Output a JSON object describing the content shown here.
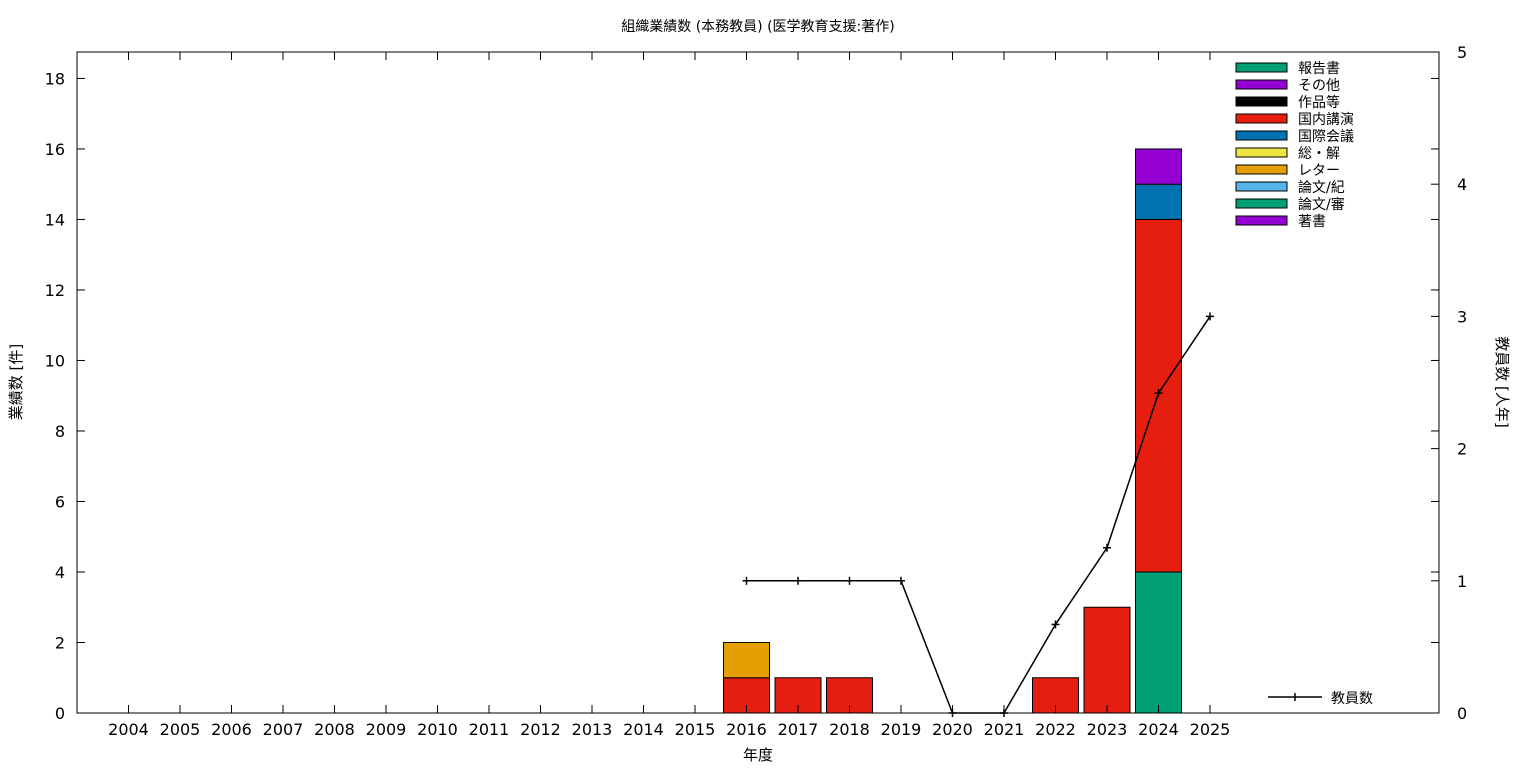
{
  "chart_data": {
    "type": "bar",
    "stacked": true,
    "title": "組織業績数 (本務教員) (医学教育支援:著作)",
    "xlabel": "年度",
    "ylabel": "業績数 [件]",
    "y2label": "教員数 [人年]",
    "categories": [
      "2004",
      "2005",
      "2006",
      "2007",
      "2008",
      "2009",
      "2010",
      "2011",
      "2012",
      "2013",
      "2014",
      "2015",
      "2016",
      "2017",
      "2018",
      "2019",
      "2020",
      "2021",
      "2022",
      "2023",
      "2024",
      "2025"
    ],
    "ylim": [
      0,
      18.75
    ],
    "yticks": [
      0,
      2,
      4,
      6,
      8,
      10,
      12,
      14,
      16,
      18
    ],
    "y2lim": [
      0,
      5
    ],
    "y2ticks": [
      0,
      1,
      2,
      3,
      4,
      5
    ],
    "grid": false,
    "legend_position": "top-right",
    "series": [
      {
        "name": "報告書",
        "color": "#009e73",
        "values": [
          0,
          0,
          0,
          0,
          0,
          0,
          0,
          0,
          0,
          0,
          0,
          0,
          0,
          0,
          0,
          0,
          0,
          0,
          0,
          0,
          4,
          0
        ]
      },
      {
        "name": "その他",
        "color": "#9400d3",
        "values": [
          0,
          0,
          0,
          0,
          0,
          0,
          0,
          0,
          0,
          0,
          0,
          0,
          0,
          0,
          0,
          0,
          0,
          0,
          0,
          0,
          0,
          0
        ]
      },
      {
        "name": "作品等",
        "color": "#000000",
        "values": [
          0,
          0,
          0,
          0,
          0,
          0,
          0,
          0,
          0,
          0,
          0,
          0,
          0,
          0,
          0,
          0,
          0,
          0,
          0,
          0,
          0,
          0
        ]
      },
      {
        "name": "国内講演",
        "color": "#e51e10",
        "values": [
          0,
          0,
          0,
          0,
          0,
          0,
          0,
          0,
          0,
          0,
          0,
          0,
          1,
          1,
          1,
          0,
          0,
          0,
          1,
          3,
          10,
          0
        ]
      },
      {
        "name": "国際会議",
        "color": "#0072b2",
        "values": [
          0,
          0,
          0,
          0,
          0,
          0,
          0,
          0,
          0,
          0,
          0,
          0,
          0,
          0,
          0,
          0,
          0,
          0,
          0,
          0,
          1,
          0
        ]
      },
      {
        "name": "総・解",
        "color": "#f0e442",
        "values": [
          0,
          0,
          0,
          0,
          0,
          0,
          0,
          0,
          0,
          0,
          0,
          0,
          0,
          0,
          0,
          0,
          0,
          0,
          0,
          0,
          0,
          0
        ]
      },
      {
        "name": "レター",
        "color": "#e69f00",
        "values": [
          0,
          0,
          0,
          0,
          0,
          0,
          0,
          0,
          0,
          0,
          0,
          0,
          1,
          0,
          0,
          0,
          0,
          0,
          0,
          0,
          0,
          0
        ]
      },
      {
        "name": "論文/紀",
        "color": "#56b4e9",
        "values": [
          0,
          0,
          0,
          0,
          0,
          0,
          0,
          0,
          0,
          0,
          0,
          0,
          0,
          0,
          0,
          0,
          0,
          0,
          0,
          0,
          0,
          0
        ]
      },
      {
        "name": "論文/審",
        "color": "#009e73",
        "values": [
          0,
          0,
          0,
          0,
          0,
          0,
          0,
          0,
          0,
          0,
          0,
          0,
          0,
          0,
          0,
          0,
          0,
          0,
          0,
          0,
          0,
          0
        ]
      },
      {
        "name": "著書",
        "color": "#9400d3",
        "values": [
          0,
          0,
          0,
          0,
          0,
          0,
          0,
          0,
          0,
          0,
          0,
          0,
          0,
          0,
          0,
          0,
          0,
          0,
          0,
          0,
          1,
          0
        ]
      }
    ],
    "stack_order": [
      "報告書",
      "国内講演",
      "国際会議",
      "レター",
      "その他",
      "作品等",
      "総・解",
      "論文/紀",
      "論文/審",
      "著書"
    ],
    "line": {
      "name": "教員数",
      "axis": "right",
      "color": "#000000",
      "points": [
        {
          "x": "2016",
          "y": 1
        },
        {
          "x": "2017",
          "y": 1
        },
        {
          "x": "2018",
          "y": 1
        },
        {
          "x": "2019",
          "y": 1
        },
        {
          "x": "2020",
          "y": 0
        },
        {
          "x": "2021",
          "y": 0
        },
        {
          "x": "2022",
          "y": 0.67
        },
        {
          "x": "2023",
          "y": 1.25
        },
        {
          "x": "2024",
          "y": 2.42
        },
        {
          "x": "2025",
          "y": 3
        }
      ]
    }
  }
}
